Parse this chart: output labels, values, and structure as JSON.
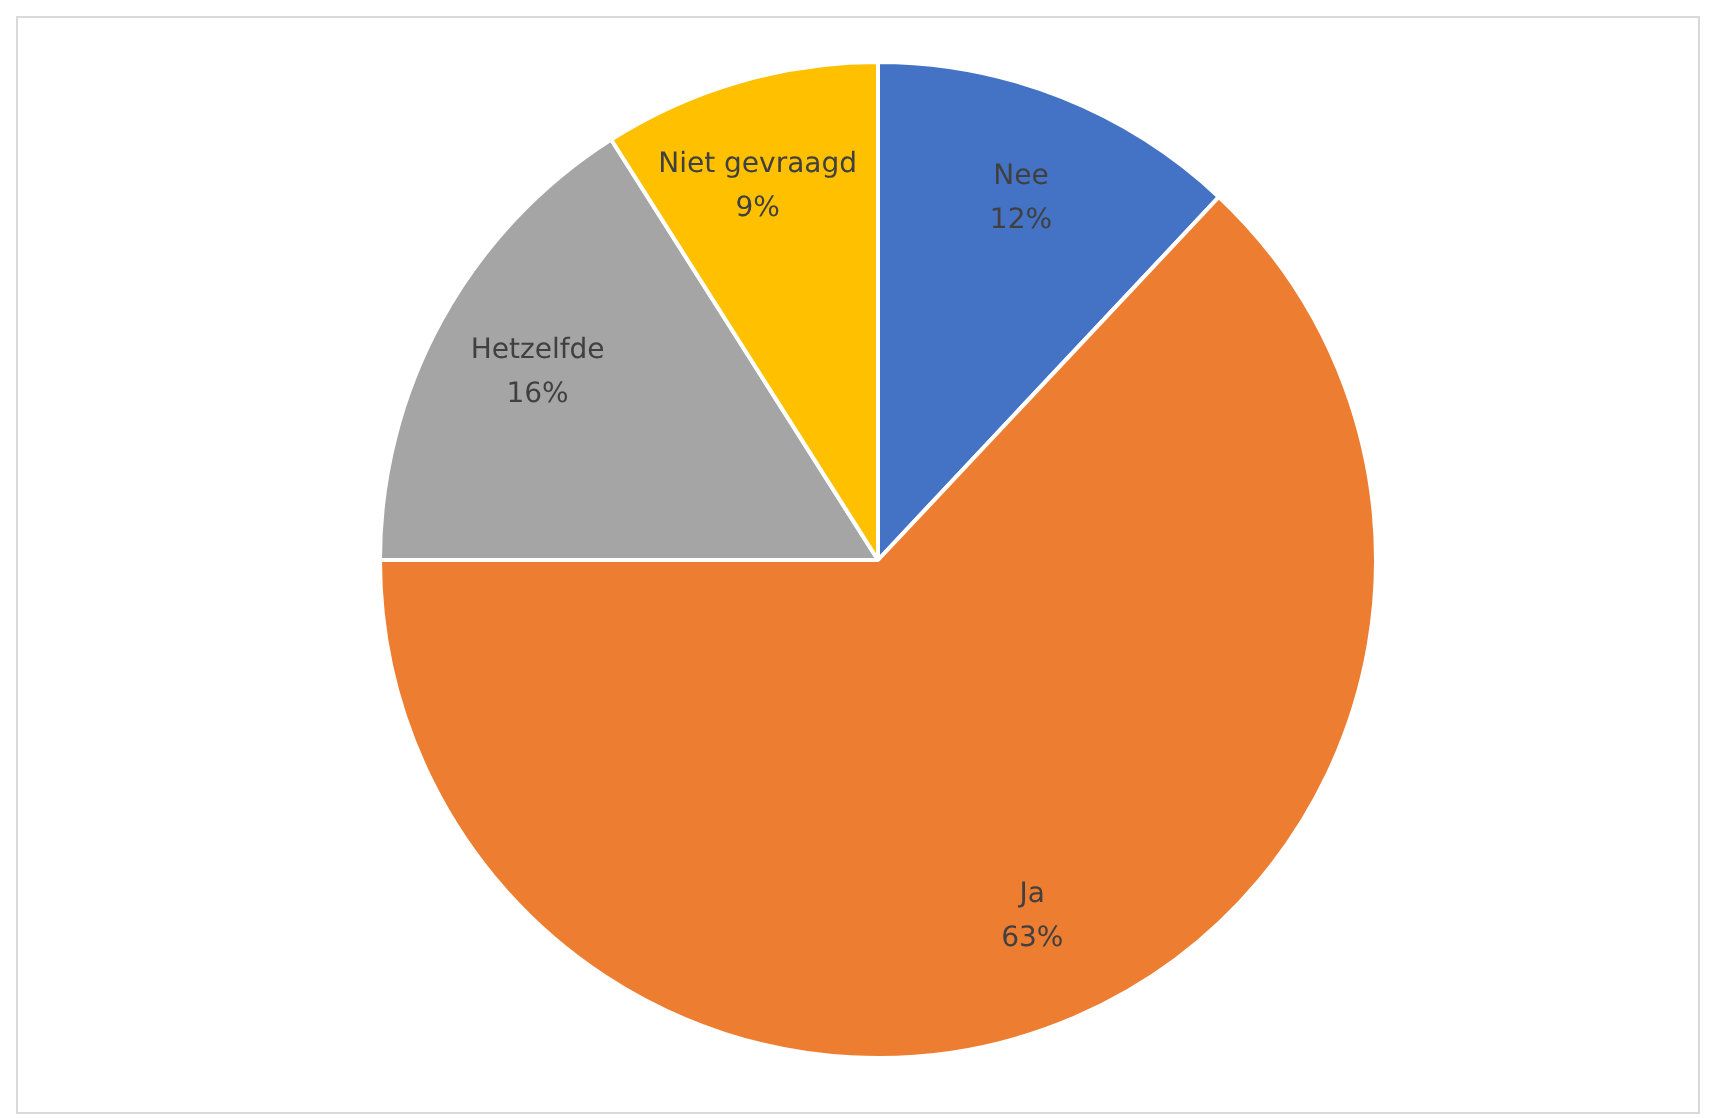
{
  "chart_data": {
    "type": "pie",
    "categories": [
      "Nee",
      "Ja",
      "Hetzelfde",
      "Niet gevraagd"
    ],
    "values": [
      12,
      63,
      16,
      9
    ],
    "colors": [
      "#4472c4",
      "#ed7d31",
      "#a5a5a5",
      "#ffc000"
    ],
    "value_labels": [
      "12%",
      "63%",
      "16%",
      "9%"
    ],
    "legend": false
  }
}
